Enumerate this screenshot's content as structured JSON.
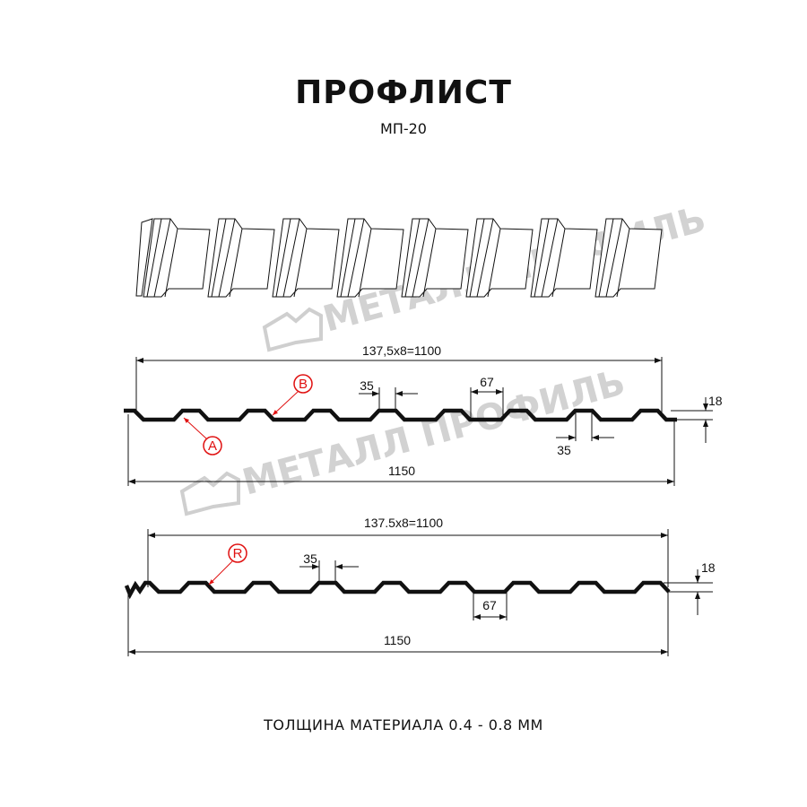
{
  "title": "ПРОФЛИСТ",
  "model": "МП-20",
  "watermark": "МЕТАЛЛ ПРОФИЛЬ",
  "profile_a": {
    "width_useful_label": "137,5x8=1100",
    "width_total_label": "1150",
    "ridge_top_label": "35",
    "valley_label": "67",
    "ridge_top_label_2": "35",
    "height_label": "18",
    "marker_a": "A",
    "marker_b": "B"
  },
  "profile_r": {
    "width_useful_label": "137.5x8=1100",
    "width_total_label": "1150",
    "ridge_top_label": "35",
    "valley_label": "67",
    "height_label": "18",
    "marker_r": "R"
  },
  "footer": "ТОЛЩИНА МАТЕРИАЛА 0.4 - 0.8 ММ",
  "colors": {
    "line": "#111111",
    "marker": "#e01010",
    "watermark": "#c8c8c8"
  }
}
